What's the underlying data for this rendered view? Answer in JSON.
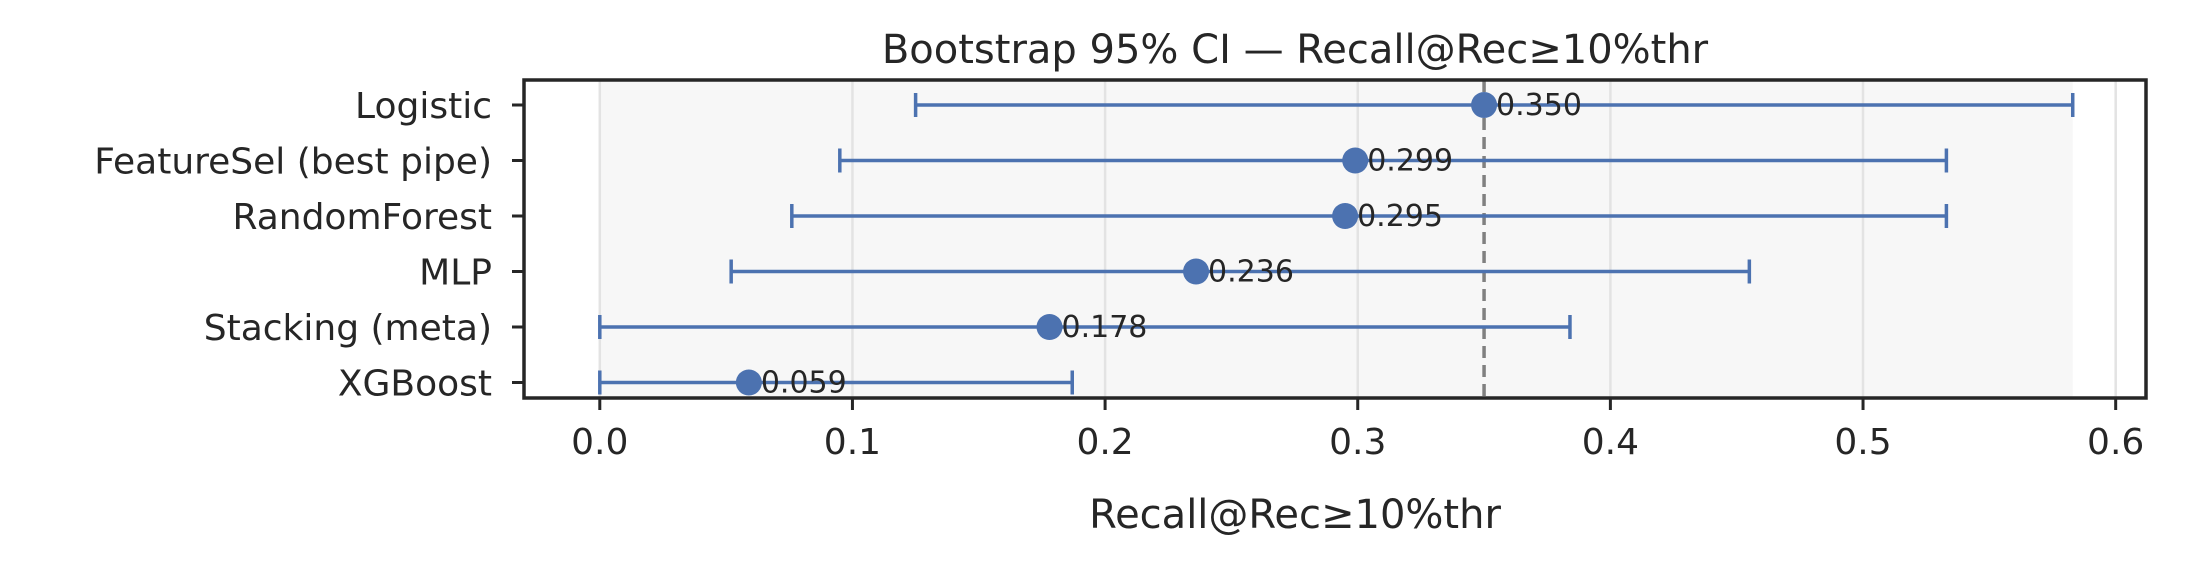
{
  "chart_data": {
    "type": "errorbar-dot",
    "title": "Bootstrap 95% CI — Recall@Rec≥10%thr",
    "xlabel": "Recall@Rec≥10%thr",
    "ylabel": "",
    "xlim": [
      -0.03,
      0.612
    ],
    "xticks": [
      0.0,
      0.1,
      0.2,
      0.3,
      0.4,
      0.5,
      0.6
    ],
    "xtick_labels": [
      "0.0",
      "0.1",
      "0.2",
      "0.3",
      "0.4",
      "0.5",
      "0.6"
    ],
    "grid": "vertical",
    "reference_line": {
      "value": 0.35,
      "style": "dashed"
    },
    "categories": [
      "Logistic",
      "FeatureSel (best pipe)",
      "RandomForest",
      "MLP",
      "Stacking (meta)",
      "XGBoost"
    ],
    "values": [
      0.35,
      0.299,
      0.295,
      0.236,
      0.178,
      0.059
    ],
    "value_labels": [
      "0.350",
      "0.299",
      "0.295",
      "0.236",
      "0.178",
      "0.059"
    ],
    "ci_low": [
      0.125,
      0.095,
      0.076,
      0.052,
      0.0,
      0.0
    ],
    "ci_high": [
      0.583,
      0.533,
      0.533,
      0.455,
      0.384,
      0.187
    ],
    "colors": {
      "series": "#4C72B0",
      "reference": "#808080",
      "band": "#f7f7f7",
      "grid": "#e3e3e3",
      "axis": "#262626"
    }
  }
}
